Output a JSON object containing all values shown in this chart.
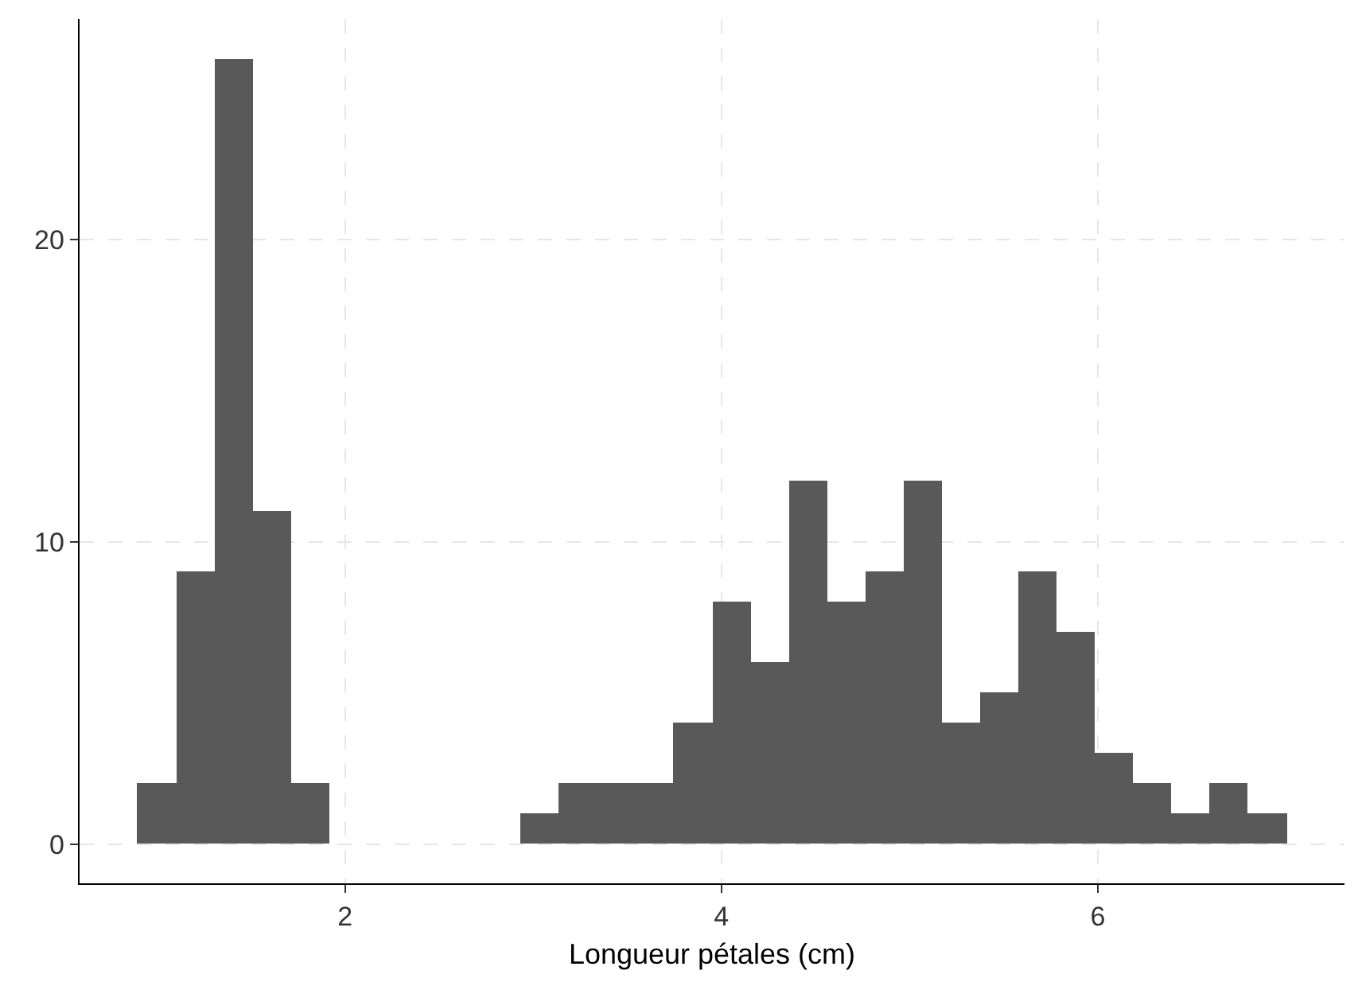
{
  "chart_data": {
    "type": "histogram",
    "xlabel": "Longueur pétales (cm)",
    "color": "#595959",
    "bins": [
      0.898,
      1.102,
      1.305,
      1.508,
      1.712,
      1.915,
      2.119,
      2.322,
      2.526,
      2.729,
      2.933,
      3.136,
      3.34,
      3.543,
      3.747,
      3.95,
      4.153,
      4.357,
      4.56,
      4.764,
      4.967,
      5.171,
      5.374,
      5.578,
      5.781,
      5.984,
      6.188,
      6.391,
      6.595,
      6.798,
      7.002
    ],
    "values": [
      2,
      9,
      26,
      11,
      2,
      0,
      0,
      0,
      0,
      0,
      1,
      2,
      2,
      2,
      4,
      8,
      6,
      12,
      8,
      9,
      12,
      4,
      5,
      9,
      7,
      3,
      2,
      1,
      2,
      1
    ],
    "xlim": [
      0.59,
      7.31
    ],
    "xticks": [
      2,
      4,
      6
    ],
    "ylim": [
      -1.3,
      27.3
    ],
    "yticks": [
      0,
      10,
      20
    ],
    "grid": true
  }
}
